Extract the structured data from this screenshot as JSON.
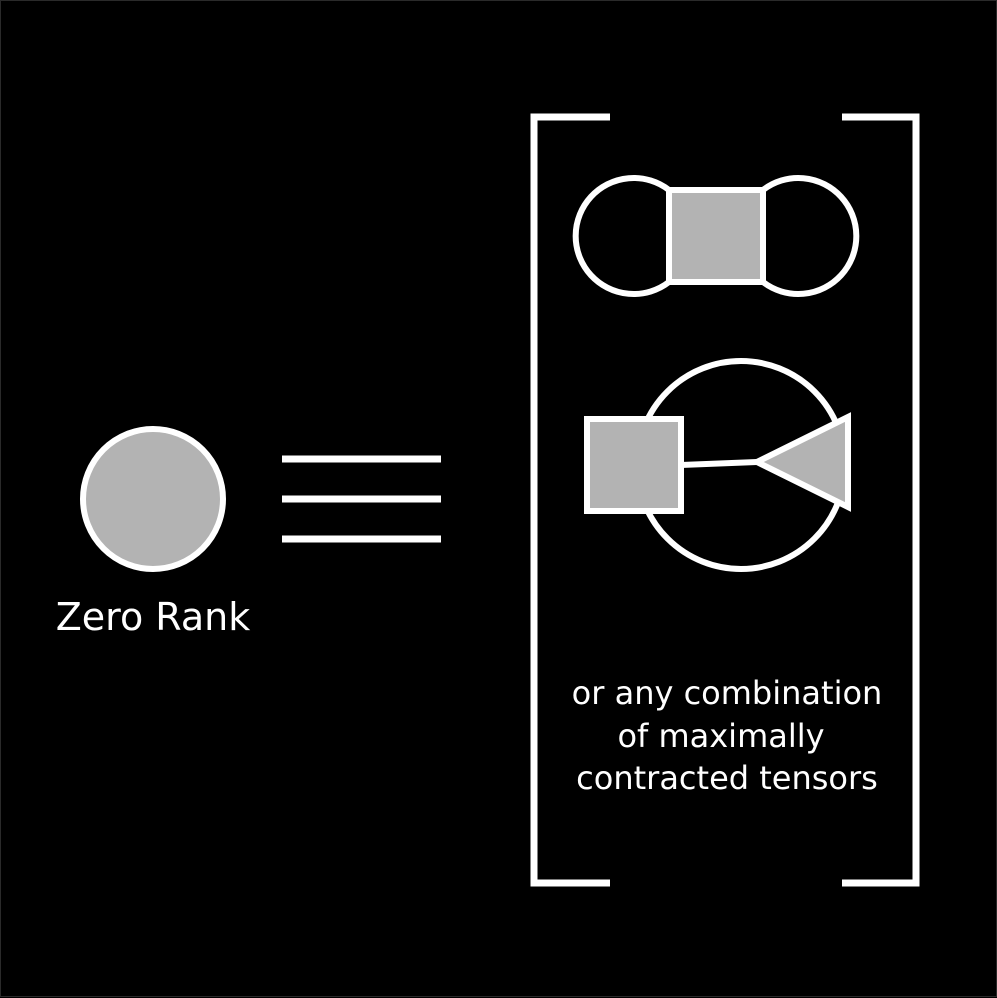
{
  "colors": {
    "background": "#000000",
    "stroke": "#ffffff",
    "fill": "#b3b3b3"
  },
  "left_node": {
    "label": "Zero Rank"
  },
  "relation": {
    "symbol": "equivalent-to"
  },
  "right_group": {
    "caption_lines": [
      "or any combination",
      "of maximally",
      "contracted tensors"
    ]
  }
}
